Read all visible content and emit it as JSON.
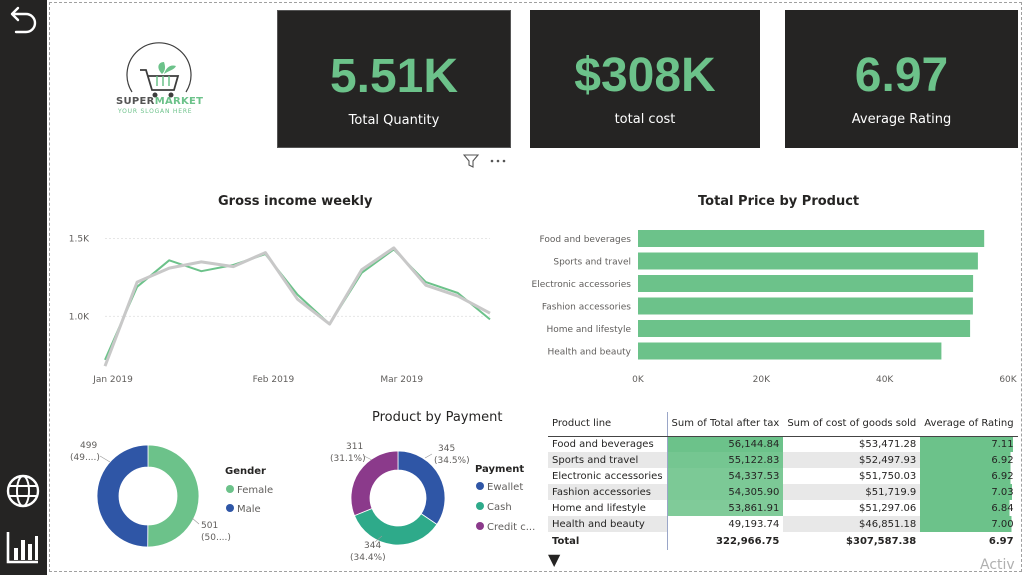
{
  "nav": {
    "back_icon": "back-arrow-icon",
    "globe_icon": "globe-icon",
    "report_icon": "bar-chart-icon"
  },
  "logo": {
    "brand_a": "SUPER",
    "brand_b": "MARKET",
    "slogan": "YOUR SLOGAN HERE"
  },
  "kpis": [
    {
      "value": "5.51K",
      "label": "Total Quantity"
    },
    {
      "value": "$308K",
      "label": "total cost"
    },
    {
      "value": "6.97",
      "label": "Average Rating"
    }
  ],
  "colors": {
    "accent": "#6cc28a",
    "dark": "#252423",
    "male": "#2f56a6",
    "purple": "#8b3a8b",
    "teal": "#2eaa8a",
    "gray_line": "#c8c8c8"
  },
  "chart_data": [
    {
      "type": "line",
      "title": "Gross income weekly",
      "x": [
        "2019-01-01",
        "2019-01-06",
        "2019-01-13",
        "2019-01-20",
        "2019-01-27",
        "2019-02-03",
        "2019-02-10",
        "2019-02-17",
        "2019-02-24",
        "2019-03-03",
        "2019-03-10",
        "2019-03-17",
        "2019-03-24",
        "2019-03-31"
      ],
      "x_ticks": [
        "Jan 2019",
        "Feb 2019",
        "Mar 2019"
      ],
      "y_ticks": [
        "1.5K",
        "1.0K"
      ],
      "ylim": [
        700,
        1600
      ],
      "series": [
        {
          "values": [
            680,
            1220,
            1310,
            1350,
            1320,
            1410,
            1110,
            950,
            1300,
            1440,
            1200,
            1130,
            1020,
            null
          ]
        },
        {
          "values": [
            720,
            1190,
            1360,
            1290,
            1330,
            1400,
            1140,
            950,
            1280,
            1430,
            1220,
            1150,
            980,
            null
          ]
        }
      ]
    },
    {
      "type": "bar",
      "title": "Total Price by Product",
      "categories": [
        "Food and beverages",
        "Sports and travel",
        "Electronic accessories",
        "Fashion accessories",
        "Home and lifestyle",
        "Health and beauty"
      ],
      "values": [
        56144.84,
        55122.83,
        54337.53,
        54305.9,
        53861.91,
        49193.74
      ],
      "x_ticks": [
        "0K",
        "20K",
        "40K",
        "60K"
      ],
      "xlim": [
        0,
        60000
      ]
    },
    {
      "type": "pie",
      "title": "",
      "legend_title": "Gender",
      "labels": [
        "Female",
        "Male"
      ],
      "values": [
        501,
        499
      ],
      "data_labels": [
        {
          "count": "501",
          "pct": "(50....)"
        },
        {
          "count": "499",
          "pct": "(49....)"
        }
      ]
    },
    {
      "type": "pie",
      "title": "Product by Payment",
      "legend_title": "Payment",
      "labels": [
        "Ewallet",
        "Cash",
        "Credit c..."
      ],
      "values": [
        345,
        344,
        311
      ],
      "data_labels": [
        {
          "count": "345",
          "pct": "(34.5%)"
        },
        {
          "count": "344",
          "pct": "(34.4%)"
        },
        {
          "count": "311",
          "pct": "(31.1%)"
        }
      ]
    },
    {
      "type": "table",
      "columns": [
        "Product line",
        "Sum of Total after tax",
        "Sum of cost of goods sold",
        "Average of Rating"
      ],
      "rows": [
        [
          "Food and beverages",
          "56,144.84",
          "$53,471.28",
          "7.11"
        ],
        [
          "Sports and travel",
          "55,122.83",
          "$52,497.93",
          "6.92"
        ],
        [
          "Electronic accessories",
          "54,337.53",
          "$51,750.03",
          "6.92"
        ],
        [
          "Fashion accessories",
          "54,305.90",
          "$51,719.9",
          "7.03"
        ],
        [
          "Home and lifestyle",
          "53,861.91",
          "$51,297.06",
          "6.84"
        ],
        [
          "Health and beauty",
          "49,193.74",
          "$46,851.18",
          "7.00"
        ]
      ],
      "total": [
        "Total",
        "322,966.75",
        "$307,587.38",
        "6.97"
      ]
    }
  ],
  "watermark": "Activ"
}
